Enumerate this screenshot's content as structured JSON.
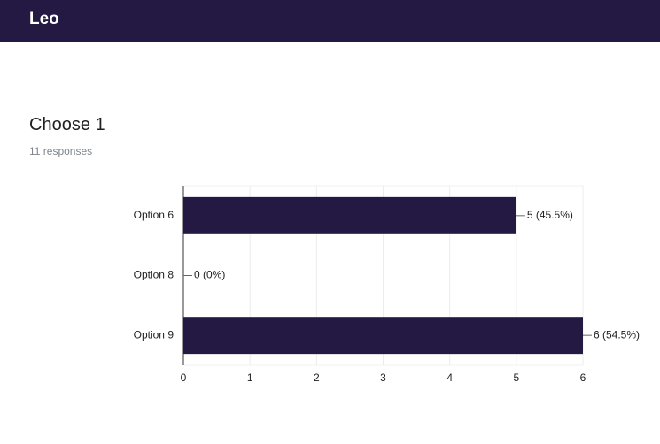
{
  "header": {
    "title": "Leo"
  },
  "question": {
    "title": "Choose 1",
    "responses": "11 responses"
  },
  "chart_data": {
    "type": "barh",
    "categories": [
      "Option 6",
      "Option 8",
      "Option 9"
    ],
    "values": [
      5,
      0,
      6
    ],
    "value_labels": [
      "5 (45.5%)",
      "0 (0%)",
      "6 (54.5%)"
    ],
    "color": "#231942",
    "xlim": [
      0,
      6
    ],
    "xticks": [
      0,
      1,
      2,
      3,
      4,
      5,
      6
    ],
    "grid": true
  }
}
